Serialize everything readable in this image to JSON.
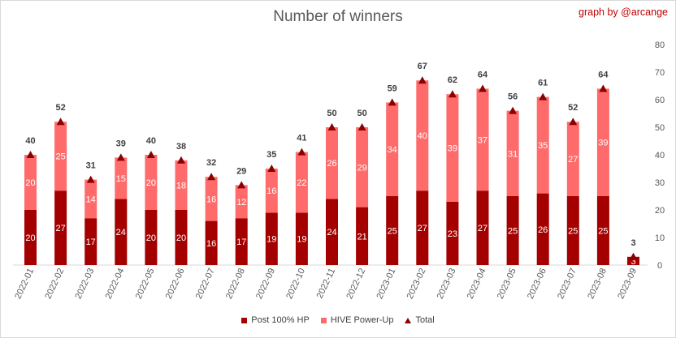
{
  "chart_data": {
    "type": "bar",
    "title": "Number of winners",
    "credit": "graph by @arcange",
    "categories": [
      "2022-01",
      "2022-02",
      "2022-03",
      "2022-04",
      "2022-05",
      "2022-06",
      "2022-07",
      "2022-08",
      "2022-09",
      "2022-10",
      "2022-11",
      "2022-12",
      "2023-01",
      "2023-02",
      "2023-03",
      "2023-04",
      "2023-05",
      "2023-06",
      "2023-07",
      "2023-08",
      "2023-09"
    ],
    "series": [
      {
        "name": "Post 100% HP",
        "color": "#a50000",
        "values": [
          20,
          27,
          17,
          24,
          20,
          20,
          16,
          17,
          19,
          19,
          24,
          21,
          25,
          27,
          23,
          27,
          25,
          26,
          25,
          25,
          3
        ]
      },
      {
        "name": "HIVE Power-Up",
        "color": "#ff6b6b",
        "values": [
          20,
          25,
          14,
          15,
          20,
          18,
          16,
          12,
          16,
          22,
          26,
          29,
          34,
          40,
          39,
          37,
          31,
          35,
          27,
          39,
          0
        ]
      },
      {
        "name": "Total",
        "color": "#8b0000",
        "values": [
          40,
          52,
          31,
          39,
          40,
          38,
          32,
          29,
          35,
          41,
          50,
          50,
          59,
          67,
          62,
          64,
          56,
          61,
          52,
          64,
          3
        ]
      }
    ],
    "yaxis": {
      "side": "right",
      "ylim": [
        0,
        80
      ],
      "ticks": [
        "0",
        "10",
        "20",
        "30",
        "40",
        "50",
        "60",
        "70",
        "80"
      ]
    },
    "legend_position": "bottom",
    "grid": false
  }
}
